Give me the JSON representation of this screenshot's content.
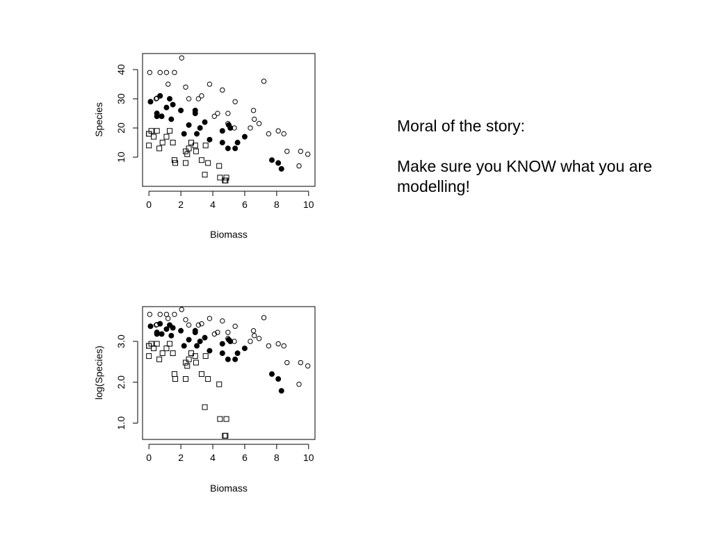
{
  "slide": {
    "moral_title": "Moral of the story:",
    "moral_text": "Make sure you KNOW what you are modelling!"
  },
  "chart_data": [
    {
      "type": "scatter",
      "title": "",
      "xlabel": "Biomass",
      "ylabel": "Species",
      "xlim": [
        -0.4,
        10.4
      ],
      "ylim": [
        0,
        45.5
      ],
      "xticks": [
        0,
        2,
        4,
        6,
        8,
        10
      ],
      "yticks": [
        10,
        20,
        30,
        40
      ],
      "ytick_labels": [
        "10",
        "20",
        "30",
        "40"
      ],
      "series": [
        {
          "marker": "open-circle",
          "x": [
            0.05,
            0.45,
            0.7,
            1.1,
            1.6,
            2.05,
            1.2,
            2.3,
            3.3,
            3.8,
            4.6,
            7.2,
            0.5,
            2.5,
            3.1,
            4.1,
            5.4,
            6.55,
            6.6,
            4.3,
            4.95,
            6.9,
            6.35,
            4.95,
            5.35,
            7.5,
            8.1,
            8.45,
            9.5,
            8.65,
            9.95,
            9.4
          ],
          "y": [
            39,
            30,
            39,
            39,
            39,
            44,
            35,
            34,
            31,
            35,
            33,
            36,
            30.2,
            30,
            30,
            24,
            29,
            26,
            23,
            25,
            25,
            21.5,
            20,
            21.5,
            20,
            18,
            19,
            18,
            12,
            12,
            11,
            7
          ]
        },
        {
          "marker": "filled-circle",
          "x": [
            0.1,
            0.5,
            0.7,
            1.1,
            1.3,
            1.5,
            0.5,
            0.8,
            1.4,
            2.0,
            2.5,
            2.9,
            2.9,
            3.5,
            3.2,
            2.2,
            3.0,
            3.8,
            4.6,
            5.0,
            5.1,
            4.6,
            4.95,
            5.4,
            5.55,
            6.0,
            7.7,
            8.1,
            8.3
          ],
          "y": [
            29,
            25,
            31,
            27,
            30,
            28,
            24,
            24,
            23,
            26,
            21,
            26,
            25,
            22,
            20,
            18,
            18,
            16,
            19,
            21,
            20,
            15,
            13,
            13,
            15,
            17,
            9,
            8,
            6
          ]
        },
        {
          "marker": "open-square",
          "x": [
            0.0,
            0.15,
            0.3,
            0.5,
            0.65,
            0.85,
            1.1,
            1.3,
            1.5,
            1.6,
            1.65,
            2.3,
            2.4,
            2.5,
            2.65,
            2.9,
            2.95,
            3.3,
            3.55,
            3.7,
            4.4,
            4.45,
            4.8,
            4.85,
            4.75,
            0.0,
            0.0,
            3.5,
            2.3
          ],
          "y": [
            14,
            19,
            17,
            19,
            13,
            15,
            17,
            19,
            15,
            9,
            8,
            8,
            11,
            13,
            15,
            14,
            12,
            9,
            14,
            8,
            7,
            3,
            2,
            3,
            2,
            18,
            18,
            4,
            12
          ]
        }
      ]
    },
    {
      "type": "scatter",
      "title": "",
      "xlabel": "Biomass",
      "ylabel": "log(Species)",
      "xlim": [
        -0.4,
        10.4
      ],
      "ylim": [
        0.6,
        3.85
      ],
      "xticks": [
        0,
        2,
        4,
        6,
        8,
        10
      ],
      "yticks": [
        1.0,
        2.0,
        3.0
      ],
      "ytick_labels": [
        "1.0",
        "2.0",
        "3.0"
      ],
      "series": [
        {
          "marker": "open-circle",
          "x": [
            0.05,
            0.45,
            0.7,
            1.1,
            1.6,
            2.05,
            1.2,
            2.3,
            3.3,
            3.8,
            4.6,
            7.2,
            0.5,
            2.5,
            3.1,
            4.1,
            5.4,
            6.55,
            6.6,
            4.3,
            4.95,
            6.9,
            6.35,
            4.95,
            5.35,
            7.5,
            8.1,
            8.45,
            9.5,
            8.65,
            9.95,
            9.4
          ],
          "y": [
            3.66,
            3.4,
            3.66,
            3.66,
            3.66,
            3.78,
            3.56,
            3.53,
            3.43,
            3.56,
            3.5,
            3.58,
            3.41,
            3.4,
            3.4,
            3.18,
            3.37,
            3.26,
            3.14,
            3.22,
            3.22,
            3.07,
            3.0,
            3.07,
            3.0,
            2.89,
            2.94,
            2.89,
            2.48,
            2.48,
            2.4,
            1.95
          ]
        },
        {
          "marker": "filled-circle",
          "x": [
            0.1,
            0.5,
            0.7,
            1.1,
            1.3,
            1.5,
            0.5,
            0.8,
            1.4,
            2.0,
            2.5,
            2.9,
            2.9,
            3.5,
            3.2,
            2.2,
            3.0,
            3.8,
            4.6,
            5.0,
            5.1,
            4.6,
            4.95,
            5.4,
            5.55,
            6.0,
            7.7,
            8.1,
            8.3
          ],
          "y": [
            3.37,
            3.22,
            3.43,
            3.3,
            3.4,
            3.33,
            3.18,
            3.18,
            3.14,
            3.26,
            3.04,
            3.26,
            3.22,
            3.09,
            3.0,
            2.89,
            2.89,
            2.77,
            2.94,
            3.04,
            3.0,
            2.71,
            2.56,
            2.56,
            2.71,
            2.83,
            2.2,
            2.08,
            1.79
          ]
        },
        {
          "marker": "open-square",
          "x": [
            0.0,
            0.15,
            0.3,
            0.5,
            0.65,
            0.85,
            1.1,
            1.3,
            1.5,
            1.6,
            1.65,
            2.3,
            2.4,
            2.5,
            2.65,
            2.9,
            2.95,
            3.3,
            3.55,
            3.7,
            4.4,
            4.45,
            4.8,
            4.85,
            4.75,
            0.0,
            0.0,
            3.5,
            2.3
          ],
          "y": [
            2.64,
            2.94,
            2.83,
            2.94,
            2.56,
            2.71,
            2.83,
            2.94,
            2.71,
            2.2,
            2.08,
            2.08,
            2.4,
            2.56,
            2.71,
            2.64,
            2.48,
            2.2,
            2.64,
            2.08,
            1.95,
            1.1,
            0.69,
            1.1,
            0.69,
            2.89,
            2.89,
            1.39,
            2.48
          ]
        }
      ]
    }
  ]
}
